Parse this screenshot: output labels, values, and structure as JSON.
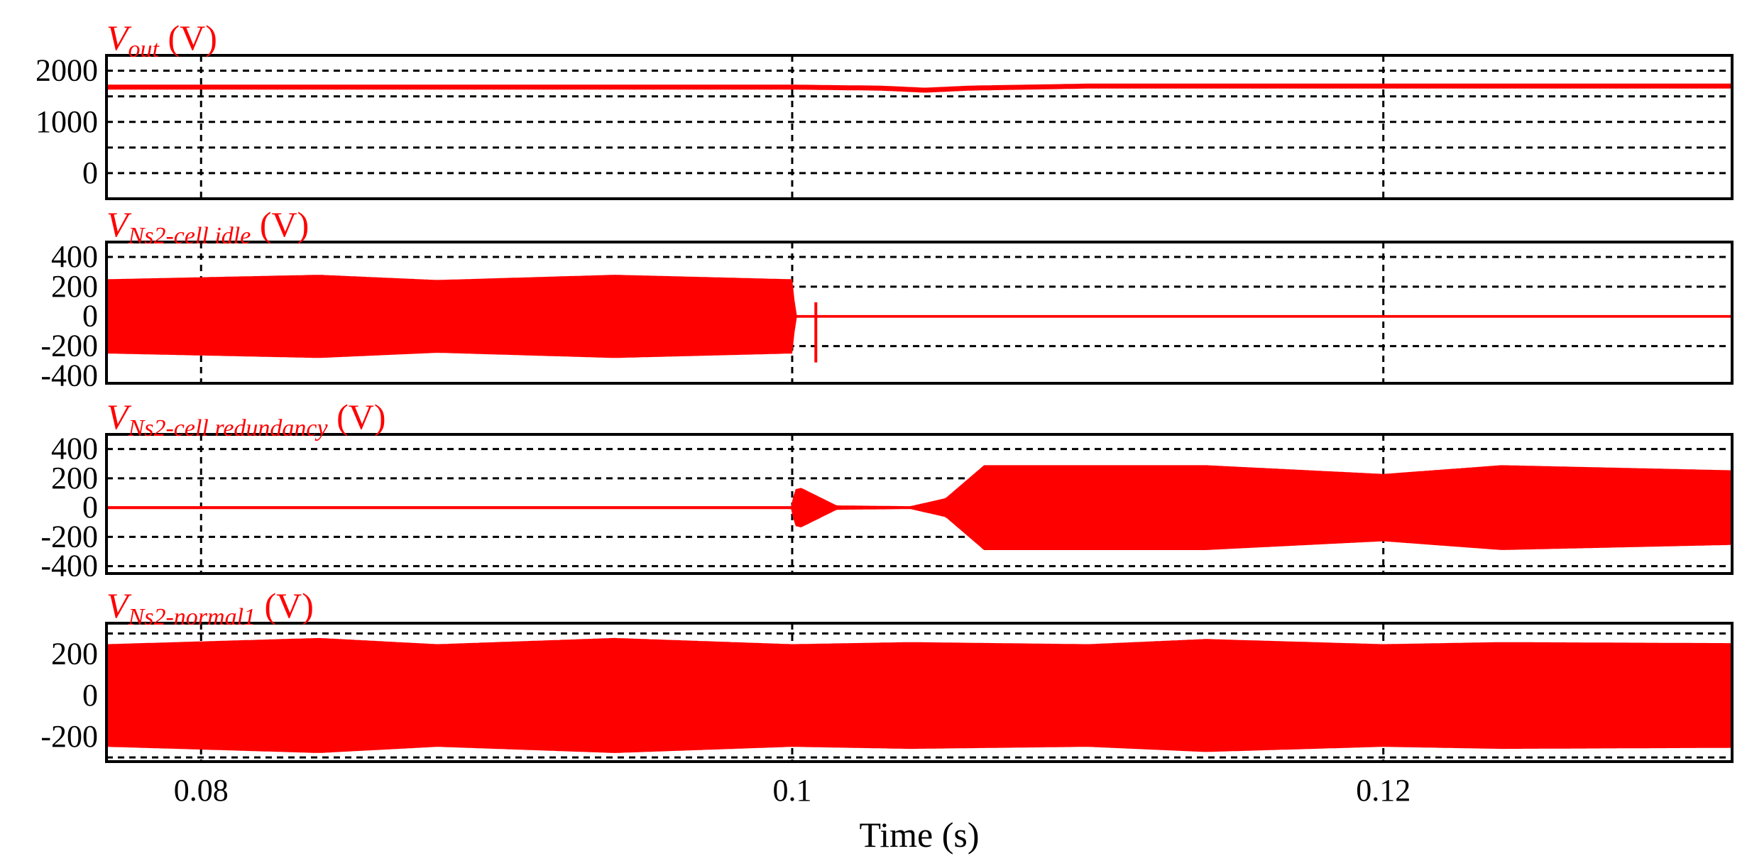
{
  "chart_data": {
    "type": "line",
    "x_axis": {
      "label": "Time (s)",
      "range": [
        0.0768,
        0.1318
      ],
      "ticks": [
        0.08,
        0.1,
        0.12
      ],
      "tick_labels": [
        "0.08",
        "0.1",
        "0.12"
      ]
    },
    "grid": true,
    "line_color": "#ff0000",
    "panels": [
      {
        "id": "vout",
        "title": {
          "symbol": "V",
          "subscript": "out",
          "unit": " (V)"
        },
        "ylim": [
          -500,
          2300
        ],
        "yticks": [
          0,
          1000,
          2000
        ],
        "ytick_labels": [
          "0",
          "1000",
          "2000"
        ],
        "grid_y": [
          0,
          500,
          1000,
          1500,
          2000
        ],
        "kind": "dc",
        "series": {
          "x": [
            0.0768,
            0.09,
            0.1,
            0.103,
            0.1045,
            0.106,
            0.11,
            0.12,
            0.1318
          ],
          "y": [
            1680,
            1680,
            1680,
            1660,
            1620,
            1660,
            1700,
            1700,
            1700
          ]
        }
      },
      {
        "id": "vns2-idle",
        "title": {
          "symbol": "V",
          "subscript": "Ns2-cell idle",
          "unit": " (V)"
        },
        "ylim": [
          -450,
          500
        ],
        "yticks": [
          -400,
          -200,
          0,
          200,
          400
        ],
        "ytick_labels": [
          "-400",
          "-200",
          "0",
          "200",
          "400"
        ],
        "grid_y": [
          -200,
          0,
          200,
          400
        ],
        "kind": "ac",
        "envelope": {
          "x": [
            0.0768,
            0.084,
            0.088,
            0.094,
            0.1,
            0.1001,
            0.1318
          ],
          "amp": [
            245,
            275,
            240,
            275,
            245,
            0,
            0
          ]
        },
        "spike": {
          "x": 0.1008,
          "up": 95,
          "down": -310
        }
      },
      {
        "id": "vns2-redundancy",
        "title": {
          "symbol": "V",
          "subscript": "Ns2-cell redundancy",
          "unit": " (V)"
        },
        "ylim": [
          -450,
          500
        ],
        "yticks": [
          -400,
          -200,
          0,
          200,
          400
        ],
        "ytick_labels": [
          "-400",
          "-200",
          "0",
          "200",
          "400"
        ],
        "grid_y": [
          -400,
          -200,
          0,
          200,
          400
        ],
        "kind": "ac",
        "envelope": {
          "x": [
            0.0768,
            0.1,
            0.1001,
            0.1003,
            0.1015,
            0.104,
            0.1052,
            0.1065,
            0.114,
            0.12,
            0.124,
            0.1318
          ],
          "amp": [
            5,
            5,
            120,
            130,
            10,
            5,
            60,
            285,
            285,
            225,
            285,
            250
          ]
        }
      },
      {
        "id": "vns2-normal1",
        "title": {
          "symbol": "V",
          "subscript": "Ns2-normal1",
          "unit": " (V)"
        },
        "ylim": [
          -320,
          350
        ],
        "yticks": [
          -200,
          0,
          200
        ],
        "ytick_labels": [
          "-200",
          "0",
          "200"
        ],
        "grid_y": [
          -300,
          300
        ],
        "kind": "ac",
        "envelope": {
          "x": [
            0.0768,
            0.084,
            0.088,
            0.094,
            0.1,
            0.104,
            0.11,
            0.114,
            0.12,
            0.124,
            0.1318
          ],
          "amp": [
            245,
            275,
            245,
            275,
            245,
            255,
            245,
            270,
            245,
            255,
            250
          ]
        }
      }
    ]
  }
}
